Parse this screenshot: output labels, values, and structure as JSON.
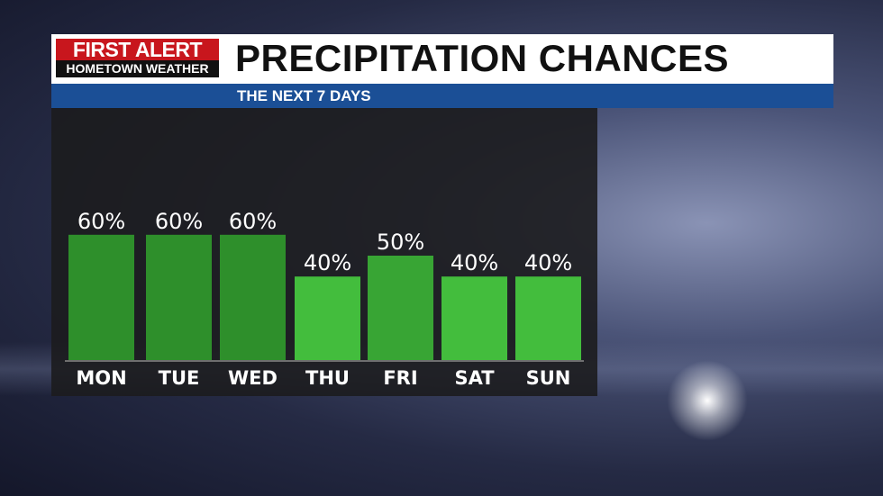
{
  "logo": {
    "line1": "FIRST ALERT",
    "line2": "HOMETOWN WEATHER"
  },
  "header": {
    "title": "PRECIPITATION CHANCES",
    "subtitle": "THE NEXT 7 DAYS"
  },
  "colors": {
    "high": "#2e8f2b",
    "mid": "#38a534",
    "low": "#43bd3d",
    "header_blue": "#1b4f96",
    "logo_red": "#c8161d"
  },
  "chart_data": {
    "type": "bar",
    "title": "PRECIPITATION CHANCES",
    "subtitle": "THE NEXT 7 DAYS",
    "categories": [
      "MON",
      "TUE",
      "WED",
      "THU",
      "FRI",
      "SAT",
      "SUN"
    ],
    "values": [
      60,
      60,
      60,
      40,
      50,
      40,
      40
    ],
    "value_labels": [
      "60%",
      "60%",
      "60%",
      "40%",
      "50%",
      "40%",
      "40%"
    ],
    "unit": "%",
    "ylim": [
      0,
      100
    ],
    "grid": false,
    "xlabel": "",
    "ylabel": ""
  }
}
